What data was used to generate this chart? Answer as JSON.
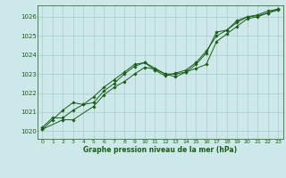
{
  "title": "Graphe pression niveau de la mer (hPa)",
  "background_color": "#cce8e8",
  "grid_color": "#aacccc",
  "line_color": "#1a5c1a",
  "marker_color": "#1a5c1a",
  "xlim": [
    -0.5,
    23.5
  ],
  "ylim": [
    1019.6,
    1026.6
  ],
  "yticks": [
    1020,
    1021,
    1022,
    1023,
    1024,
    1025,
    1026
  ],
  "xticks": [
    0,
    1,
    2,
    3,
    4,
    5,
    6,
    7,
    8,
    9,
    10,
    11,
    12,
    13,
    14,
    15,
    16,
    17,
    18,
    19,
    20,
    21,
    22,
    23
  ],
  "series": [
    {
      "x": [
        0,
        1,
        2,
        3,
        4,
        5,
        6,
        7,
        8,
        9,
        10,
        11,
        12,
        13,
        14,
        15,
        16,
        17,
        18,
        19,
        20,
        21,
        22,
        23
      ],
      "y": [
        1020.2,
        1020.7,
        1020.7,
        1021.1,
        1021.4,
        1021.5,
        1022.1,
        1022.5,
        1023.0,
        1023.4,
        1023.6,
        1023.3,
        1023.0,
        1023.0,
        1023.1,
        1023.5,
        1024.1,
        1025.2,
        1025.3,
        1025.8,
        1026.0,
        1026.1,
        1026.3,
        1026.4
      ]
    },
    {
      "x": [
        0,
        1,
        2,
        3,
        4,
        5,
        6,
        7,
        8,
        9,
        10,
        11,
        12,
        13,
        14,
        15,
        16,
        17,
        18,
        19,
        20,
        21,
        22,
        23
      ],
      "y": [
        1020.1,
        1020.6,
        1021.1,
        1021.5,
        1021.4,
        1021.8,
        1022.3,
        1022.7,
        1023.1,
        1023.5,
        1023.6,
        1023.2,
        1022.9,
        1023.05,
        1023.2,
        1023.6,
        1024.2,
        1025.0,
        1025.3,
        1025.7,
        1026.0,
        1026.05,
        1026.2,
        1026.35
      ]
    },
    {
      "x": [
        0,
        2,
        3,
        5,
        6,
        7,
        8,
        9,
        10,
        11,
        12,
        13,
        14,
        15,
        16,
        17,
        18,
        19,
        20,
        21,
        22,
        23
      ],
      "y": [
        1020.1,
        1020.6,
        1020.6,
        1021.3,
        1021.9,
        1022.3,
        1022.6,
        1023.0,
        1023.35,
        1023.25,
        1023.0,
        1022.85,
        1023.1,
        1023.3,
        1023.5,
        1024.7,
        1025.1,
        1025.5,
        1025.9,
        1026.0,
        1026.2,
        1026.4
      ]
    }
  ]
}
